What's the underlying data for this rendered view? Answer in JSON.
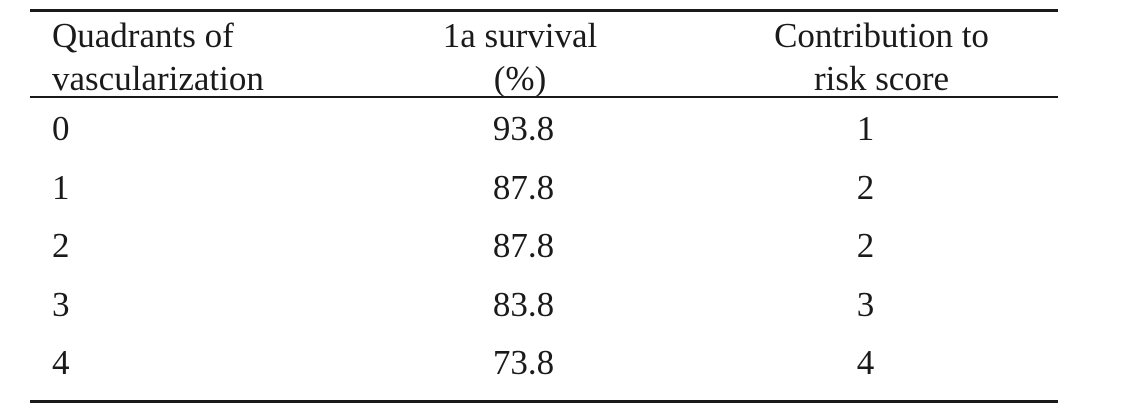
{
  "table": {
    "headers": [
      [
        "Quadrants of",
        "vascularization"
      ],
      [
        "1a survival",
        "(%)"
      ],
      [
        "Contribution to",
        "risk score"
      ]
    ],
    "rows": [
      [
        "0",
        "93.8",
        "1"
      ],
      [
        "1",
        "87.8",
        "2"
      ],
      [
        "2",
        "87.8",
        "2"
      ],
      [
        "3",
        "83.8",
        "3"
      ],
      [
        "4",
        "73.8",
        "4"
      ]
    ]
  }
}
